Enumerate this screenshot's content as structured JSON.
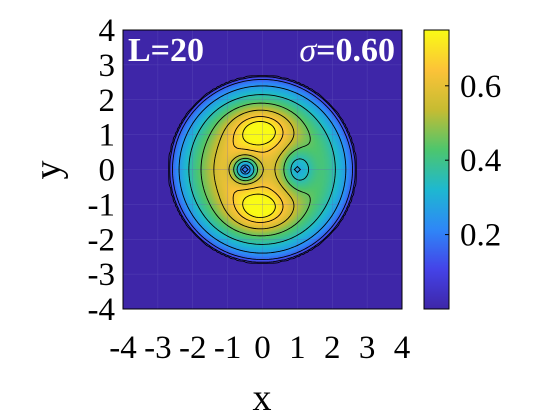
{
  "chart_data": {
    "type": "heatmap",
    "title": "",
    "xlabel": "x",
    "ylabel": "y",
    "xlim": [
      -4,
      4
    ],
    "ylim": [
      -4,
      4
    ],
    "xticks": [
      -4,
      -3,
      -2,
      -1,
      0,
      1,
      2,
      3,
      4
    ],
    "yticks": [
      -4,
      -3,
      -2,
      -1,
      0,
      1,
      2,
      3,
      4
    ],
    "annotations": {
      "left": "L=20",
      "right_symbol": "σ",
      "right_value": "=0.60"
    },
    "field": {
      "description": "Density supported on disk of radius ~2.7, peaks near (0,1.1) and (0,-1.1), hole at (-0.5,0), secondary dip at (1,0)",
      "disk_radius": 2.7,
      "peaks": [
        {
          "x": -0.05,
          "y": 1.15,
          "value": 0.74
        },
        {
          "x": -0.05,
          "y": -1.15,
          "value": 0.74
        }
      ],
      "minima": [
        {
          "x": -0.5,
          "y": 0.0,
          "value": 0.15
        },
        {
          "x": 1.0,
          "y": 0.0,
          "value": 0.32
        }
      ]
    },
    "contour_levels": [
      0.03,
      0.08,
      0.15,
      0.25,
      0.35,
      0.45,
      0.55,
      0.65,
      0.72
    ],
    "colorbar": {
      "range": [
        0,
        0.75
      ],
      "ticks": [
        0.2,
        0.4,
        0.6
      ],
      "colors": [
        "#3e26a8",
        "#4443e8",
        "#2e87f7",
        "#1eb8d0",
        "#4dc66d",
        "#c6bc32",
        "#fcc338",
        "#f9fb15"
      ]
    },
    "grid": true,
    "legend": "none"
  }
}
